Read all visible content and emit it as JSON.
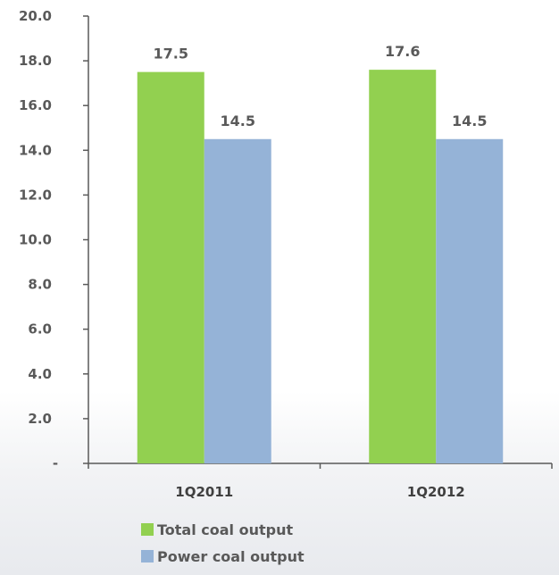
{
  "chart_data": {
    "type": "bar",
    "categories": [
      "1Q2011",
      "1Q2012"
    ],
    "series": [
      {
        "name": "Total coal output",
        "values": [
          17.5,
          17.6
        ],
        "color": "#92d050"
      },
      {
        "name": "Power coal output",
        "values": [
          14.5,
          14.5
        ],
        "color": "#95b3d7"
      }
    ],
    "data_labels": [
      [
        "17.5",
        "17.6"
      ],
      [
        "14.5",
        "14.5"
      ]
    ],
    "ylim": [
      0,
      20
    ],
    "yticks": [
      0,
      2,
      4,
      6,
      8,
      10,
      12,
      14,
      16,
      18,
      20
    ],
    "ytick_labels": [
      "-",
      "2.0",
      "4.0",
      "6.0",
      "8.0",
      "10.0",
      "12.0",
      "14.0",
      "16.0",
      "18.0",
      "20.0"
    ],
    "grid": false,
    "legend_position": "bottom-left",
    "title": "",
    "xlabel": "",
    "ylabel": ""
  }
}
